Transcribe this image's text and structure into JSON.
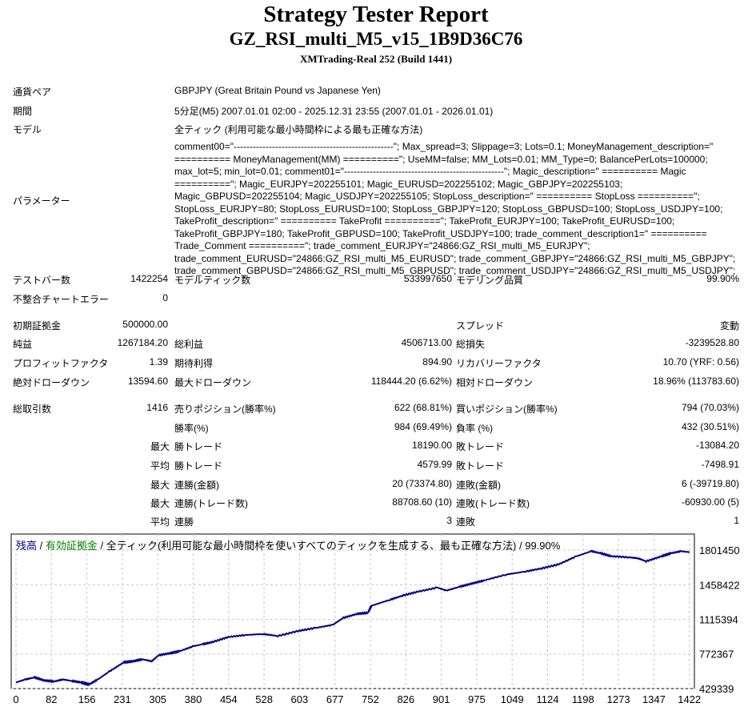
{
  "header": {
    "title": "Strategy Tester Report",
    "ea_name": "GZ_RSI_multi_M5_v15_1B9D36C76",
    "server": "XMTrading-Real 252 (Build 1441)"
  },
  "info": {
    "symbol_label": "通貨ペア",
    "symbol": "GBPJPY (Great Britain Pound vs Japanese Yen)",
    "period_label": "期間",
    "period": "5分足(M5) 2007.01.01 02:00 - 2025.12.31 23:55 (2007.01.01 - 2026.01.01)",
    "model_label": "モデル",
    "model": "全ティック (利用可能な最小時間枠による最も正確な方法)",
    "params_label": "パラメーター",
    "params": "comment00=\"--------------------------------------------------\"; Max_spread=3; Slippage=3; Lots=0.1; MoneyManagement_description=\" ========== MoneyManagement(MM) ==========\"; UseMM=false; MM_Lots=0.01; MM_Type=0; BalancePerLots=100000; max_lot=5; min_lot=0.01; comment01=\"--------------------------------------------------\"; Magic_description=\" ========== Magic ==========\"; Magic_EURJPY=202255101; Magic_EURUSD=202255102; Magic_GBPJPY=202255103; Magic_GBPUSD=202255104; Magic_USDJPY=202255105; StopLoss_description=\" ========== StopLoss ==========\"; StopLoss_EURJPY=80; StopLoss_EURUSD=100; StopLoss_GBPJPY=120; StopLoss_GBPUSD=100; StopLoss_USDJPY=100; TakeProfit_description=\" ========== TakeProfit ==========\"; TakeProfit_EURJPY=100; TakeProfit_EURUSD=100; TakeProfit_GBPJPY=180; TakeProfit_GBPUSD=100; TakeProfit_USDJPY=100; trade_comment_description1=\" ========== Trade_Comment ==========\"; trade_comment_EURJPY=\"24866:GZ_RSI_multi_M5_EURJPY\"; trade_comment_EURUSD=\"24866:GZ_RSI_multi_M5_EURUSD\"; trade_comment_GBPJPY=\"24866:GZ_RSI_multi_M5_GBPJPY\"; trade_comment_GBPUSD=\"24866:GZ_RSI_multi_M5_GBPUSD\"; trade_comment_USDJPY=\"24866:GZ_RSI_multi_M5_USDJPY\";"
  },
  "rows": [
    [
      "テストバー数",
      "1422254",
      "モデルティック数",
      "533997650",
      "モデリング品質",
      "99.90%"
    ],
    [
      "不整合チャートエラー",
      "0",
      "",
      "",
      "",
      ""
    ],
    [
      "初期証拠金",
      "500000.00",
      "",
      "",
      "スプレッド",
      "変動"
    ],
    [
      "純益",
      "1267184.20",
      "総利益",
      "4506713.00",
      "総損失",
      "-3239528.80"
    ],
    [
      "プロフィットファクタ",
      "1.39",
      "期待利得",
      "894.90",
      "リカバリーファクタ",
      "10.70 (YRF: 0.56)"
    ],
    [
      "絶対ドローダウン",
      "13594.60",
      "最大ドローダウン",
      "118444.20 (6.62%)",
      "相対ドローダウン",
      "18.96% (113783.60)"
    ],
    [
      "総取引数",
      "1416",
      "売りポジション(勝率%)",
      "622 (68.81%)",
      "買いポジション(勝率%)",
      "794 (70.03%)"
    ],
    [
      "",
      "",
      "勝率(%)",
      "984 (69.49%)",
      "負率 (%)",
      "432 (30.51%)"
    ],
    [
      "",
      "最大",
      "勝トレード",
      "18190.00",
      "敗トレード",
      "-13084.20"
    ],
    [
      "",
      "平均",
      "勝トレード",
      "4579.99",
      "敗トレード",
      "-7498.91"
    ],
    [
      "",
      "最大",
      "連勝(金額)",
      "20 (73374.80)",
      "連敗(金額)",
      "6 (-39719.80)"
    ],
    [
      "",
      "最大",
      "連勝(トレード数)",
      "88708.60 (10)",
      "連敗(トレード数)",
      "-60930.00 (5)"
    ],
    [
      "",
      "平均",
      "連勝",
      "3",
      "連敗",
      "1"
    ]
  ],
  "chart_data": {
    "type": "line",
    "legend": {
      "balance": "残高",
      "sep1": " / ",
      "equity": "有効証拠金",
      "sep2": " / ",
      "model": "全ティック(利用可能な最小時間枠を使いすべてのティックを生成する、最も正確な方法)",
      "sep3": " / ",
      "quality": "99.90%"
    },
    "colors": {
      "balance": "#000080",
      "equity": "#008000",
      "grid": "#c8c8c8"
    },
    "x_ticks": [
      "0",
      "82",
      "156",
      "231",
      "305",
      "380",
      "454",
      "528",
      "603",
      "677",
      "752",
      "826",
      "901",
      "975",
      "1049",
      "1124",
      "1198",
      "1273",
      "1347",
      "1422"
    ],
    "y_ticks": [
      "1801450",
      "1458422",
      "1115394",
      "772367",
      "429339"
    ],
    "xlim": [
      0,
      1440
    ],
    "ylim": [
      429339,
      1801450
    ],
    "series": [
      {
        "name": "残高",
        "x": [
          0,
          20,
          40,
          60,
          82,
          100,
          120,
          140,
          156,
          175,
          200,
          231,
          250,
          270,
          290,
          305,
          330,
          350,
          380,
          400,
          420,
          454,
          490,
          528,
          560,
          603,
          640,
          677,
          700,
          730,
          752,
          760,
          800,
          826,
          860,
          901,
          920,
          950,
          975,
          1000,
          1049,
          1090,
          1124,
          1160,
          1198,
          1230,
          1250,
          1273,
          1310,
          1330,
          1347,
          1380,
          1400,
          1422,
          1440
        ],
        "y": [
          490000,
          520000,
          540000,
          510000,
          500000,
          520000,
          505000,
          490000,
          470000,
          520000,
          600000,
          690000,
          700000,
          720000,
          700000,
          760000,
          780000,
          800000,
          850000,
          870000,
          890000,
          940000,
          960000,
          970000,
          950000,
          1000000,
          1030000,
          1060000,
          1130000,
          1170000,
          1180000,
          1250000,
          1310000,
          1350000,
          1390000,
          1430000,
          1400000,
          1440000,
          1470000,
          1500000,
          1560000,
          1590000,
          1620000,
          1660000,
          1740000,
          1790000,
          1770000,
          1740000,
          1730000,
          1720000,
          1690000,
          1740000,
          1770000,
          1790000,
          1780000
        ]
      }
    ]
  }
}
